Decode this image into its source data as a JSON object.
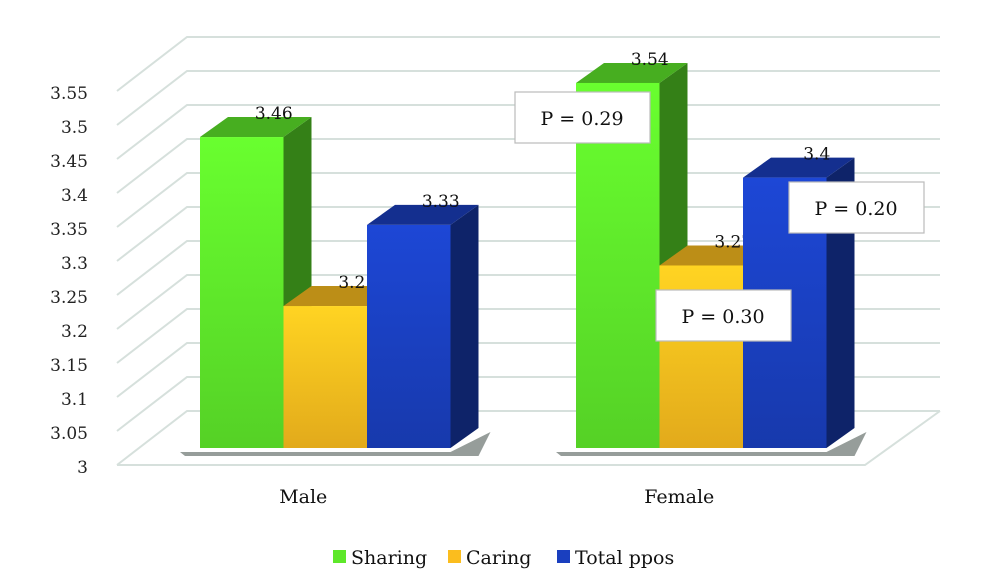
{
  "chart_data": {
    "type": "bar",
    "categories": [
      "Male",
      "Female"
    ],
    "series": [
      {
        "name": "Sharing",
        "values": [
          3.46,
          3.54
        ],
        "color": "#5ee82a"
      },
      {
        "name": "Caring",
        "values": [
          3.21,
          3.27
        ],
        "color": "#fbbd1e"
      },
      {
        "name": "Total ppos",
        "values": [
          3.33,
          3.4
        ],
        "color": "#1a3fbf"
      }
    ],
    "data_labels": [
      [
        "3.46",
        "3.54"
      ],
      [
        "3.21",
        "3.27"
      ],
      [
        "3.33",
        "3.4"
      ]
    ],
    "annotations": [
      "P = 0.29",
      "P = 0.30",
      "P = 0.20"
    ],
    "ylim": [
      3,
      3.55
    ],
    "yticks": [
      "3",
      "3.05",
      "3.1",
      "3.15",
      "3.2",
      "3.25",
      "3.3",
      "3.35",
      "3.4",
      "3.45",
      "3.5",
      "3.55"
    ],
    "grid": true,
    "style": "3d",
    "legend_position": "bottom",
    "title": "",
    "xlabel": "",
    "ylabel": ""
  }
}
